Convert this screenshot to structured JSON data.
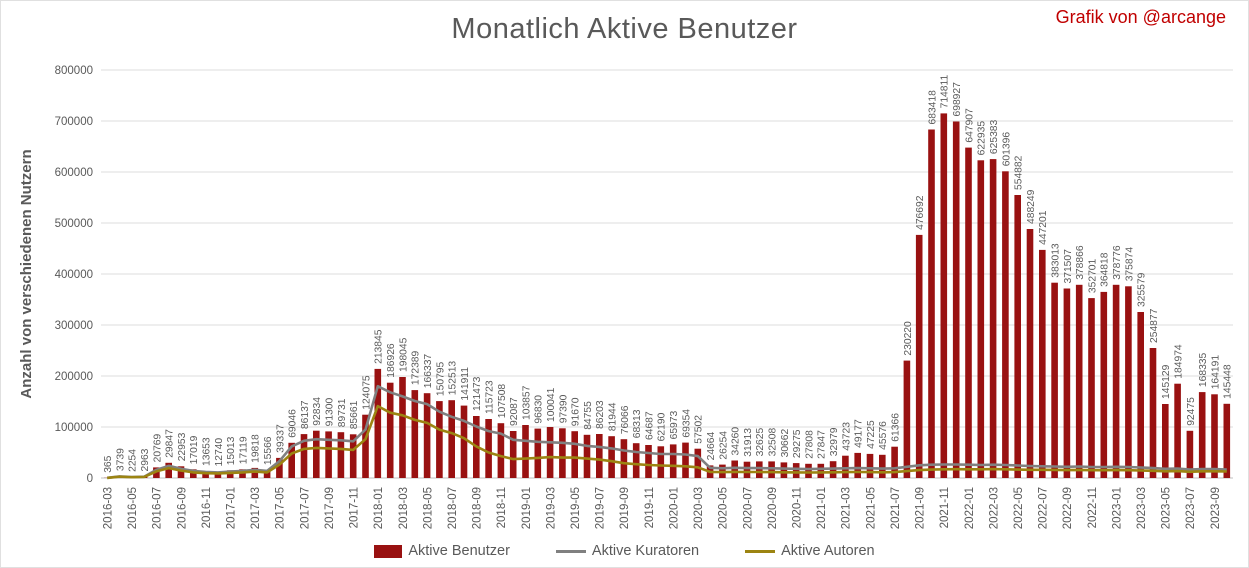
{
  "credit": "Grafik von @arcange",
  "chart_data": {
    "type": "bar",
    "title": "Monatlich Aktive Benutzer",
    "xlabel": "",
    "ylabel": "Anzahl von verschiedenen Nutzern",
    "ylim": [
      0,
      800000
    ],
    "yticks": [
      0,
      100000,
      200000,
      300000,
      400000,
      500000,
      600000,
      700000,
      800000
    ],
    "xtick_every": 2,
    "grid": true,
    "legend_position": "bottom",
    "bar_labels": true,
    "colors": {
      "bar": "#991111",
      "kuratoren_line": "#808080",
      "autoren_line": "#9C8412",
      "grid": "#DCDCDC",
      "axis": "#BFBFBF",
      "text": "#595959",
      "credit": "#C00000"
    },
    "categories": [
      "2016-03",
      "2016-04",
      "2016-05",
      "2016-06",
      "2016-07",
      "2016-08",
      "2016-09",
      "2016-10",
      "2016-11",
      "2016-12",
      "2017-01",
      "2017-02",
      "2017-03",
      "2017-04",
      "2017-05",
      "2017-06",
      "2017-07",
      "2017-08",
      "2017-09",
      "2017-10",
      "2017-11",
      "2017-12",
      "2018-01",
      "2018-02",
      "2018-03",
      "2018-04",
      "2018-05",
      "2018-06",
      "2018-07",
      "2018-08",
      "2018-09",
      "2018-10",
      "2018-11",
      "2018-12",
      "2019-01",
      "2019-02",
      "2019-03",
      "2019-04",
      "2019-05",
      "2019-06",
      "2019-07",
      "2019-08",
      "2019-09",
      "2019-10",
      "2019-11",
      "2019-12",
      "2020-01",
      "2020-02",
      "2020-03",
      "2020-04",
      "2020-05",
      "2020-06",
      "2020-07",
      "2020-08",
      "2020-09",
      "2020-10",
      "2020-11",
      "2020-12",
      "2021-01",
      "2021-02",
      "2021-03",
      "2021-04",
      "2021-05",
      "2021-06",
      "2021-07",
      "2021-08",
      "2021-09",
      "2021-10",
      "2021-11",
      "2021-12",
      "2022-01",
      "2022-02",
      "2022-03",
      "2022-04",
      "2022-05",
      "2022-06",
      "2022-07",
      "2022-08",
      "2022-09",
      "2022-10",
      "2022-11",
      "2022-12",
      "2023-01",
      "2023-02",
      "2023-03",
      "2023-04",
      "2023-05",
      "2023-06",
      "2023-07",
      "2023-08",
      "2023-09",
      "2023-10"
    ],
    "series": [
      {
        "id": "benutzer",
        "name": "Aktive Benutzer",
        "type": "bar",
        "color": "#991111",
        "values": [
          365,
          3739,
          2254,
          2963,
          20769,
          29847,
          22953,
          17019,
          13653,
          12740,
          15013,
          17119,
          19818,
          15566,
          39337,
          69046,
          86137,
          92834,
          91300,
          89731,
          85661,
          124075,
          213845,
          186926,
          198045,
          172389,
          166337,
          150795,
          152513,
          141911,
          121473,
          115723,
          107508,
          92087,
          103857,
          96830,
          100041,
          97390,
          91670,
          84755,
          86203,
          81944,
          76066,
          68313,
          64687,
          62190,
          65973,
          69354,
          57502,
          24664,
          26254,
          34260,
          31913,
          32625,
          32508,
          30662,
          29275,
          27808,
          27847,
          32979,
          43723,
          49177,
          47225,
          45576,
          61366,
          230220,
          476692,
          683418,
          714811,
          698927,
          647907,
          622935,
          625383,
          601396,
          554882,
          488249,
          447201,
          383013,
          371507,
          378866,
          352701,
          364818,
          378776,
          375874,
          325579,
          254877,
          145129,
          184974,
          92475,
          168335,
          164191,
          145448
        ]
      },
      {
        "id": "kuratoren",
        "name": "Aktive Kuratoren",
        "type": "line",
        "color": "#808080",
        "values": [
          300,
          3200,
          2000,
          2600,
          16000,
          24000,
          18000,
          14000,
          12000,
          11000,
          12500,
          14000,
          16000,
          14000,
          33000,
          62000,
          73000,
          76000,
          75000,
          74000,
          72000,
          95000,
          180000,
          168000,
          160000,
          151000,
          145000,
          130000,
          120000,
          112000,
          101000,
          92000,
          87000,
          75000,
          73000,
          71000,
          70000,
          69000,
          67000,
          63000,
          61000,
          58000,
          54000,
          51000,
          49000,
          47000,
          47000,
          46000,
          43000,
          20000,
          19000,
          20000,
          19500,
          19500,
          19000,
          18500,
          18000,
          17500,
          18000,
          18500,
          19000,
          19500,
          19000,
          18500,
          19000,
          22000,
          25000,
          26000,
          26500,
          26500,
          26000,
          25500,
          26000,
          25500,
          24500,
          23500,
          23000,
          22500,
          22000,
          22500,
          21500,
          21500,
          22000,
          21500,
          20500,
          19500,
          18000,
          18500,
          16500,
          17500,
          17500,
          16500
        ]
      },
      {
        "id": "autoren",
        "name": "Aktive Autoren",
        "type": "line",
        "color": "#9C8412",
        "values": [
          250,
          2600,
          1600,
          2100,
          13000,
          19500,
          14500,
          11000,
          9500,
          9000,
          10000,
          11000,
          12500,
          11000,
          26000,
          48000,
          57000,
          59000,
          58000,
          57000,
          55000,
          76000,
          141000,
          128000,
          123000,
          114000,
          108000,
          95000,
          88000,
          78000,
          62000,
          50000,
          43000,
          37000,
          38000,
          39500,
          41000,
          40000,
          40000,
          38000,
          36000,
          33000,
          29000,
          27000,
          25500,
          24500,
          24000,
          23000,
          21000,
          12000,
          11500,
          12000,
          11800,
          11800,
          11500,
          11200,
          11000,
          10800,
          11000,
          11200,
          11500,
          11800,
          11500,
          11200,
          11500,
          13500,
          15500,
          16500,
          17000,
          17200,
          17000,
          17000,
          17500,
          17000,
          16500,
          16000,
          16000,
          15800,
          15500,
          15800,
          15200,
          15200,
          15500,
          15200,
          14800,
          14200,
          13200,
          13600,
          12200,
          13200,
          13200,
          12800
        ]
      }
    ]
  }
}
